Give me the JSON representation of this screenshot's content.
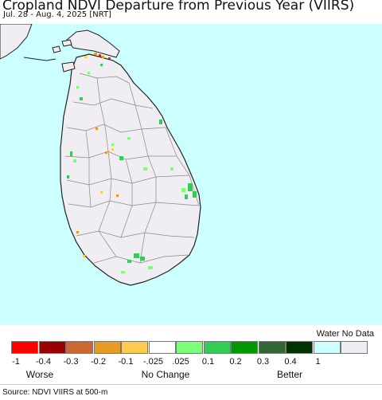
{
  "title": "Cropland NDVI Departure from Previous Year (VIIRS)",
  "subtitle": "Jul. 28 - Aug. 4, 2025 [NRT]",
  "legend": {
    "water_no_data": "Water No Data",
    "swatches": [
      {
        "color": "#ff0000"
      },
      {
        "color": "#990000"
      },
      {
        "color": "#cc6633"
      },
      {
        "color": "#e89a22"
      },
      {
        "color": "#fecb4e"
      },
      {
        "color": "#ffffff"
      },
      {
        "color": "#7dfd7a"
      },
      {
        "color": "#33cc55"
      },
      {
        "color": "#009900"
      },
      {
        "color": "#336633"
      },
      {
        "color": "#003300"
      },
      {
        "color": "#ccffff"
      },
      {
        "color": "#eeeef2"
      }
    ],
    "ticks": [
      "-1",
      "-0.4",
      "-0.3",
      "-0.2",
      "-0.1",
      "-.025",
      ".025",
      "0.1",
      "0.2",
      "0.3",
      "0.4",
      "1"
    ],
    "worse": "Worse",
    "no_change": "No Change",
    "better": "Better"
  },
  "colors": {
    "water": "#ccffff",
    "land": "#f0eef2",
    "border": "#888888"
  },
  "source": "Source: NDVI VIIRS at 500-m"
}
